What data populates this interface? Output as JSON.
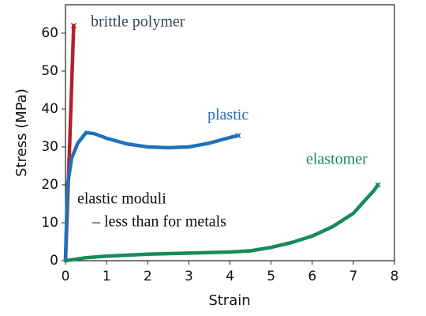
{
  "chart_data": {
    "type": "line",
    "x_label": "Strain",
    "y_label": "Stress (MPa)",
    "xlim": [
      0,
      8
    ],
    "ylim": [
      0,
      67.5
    ],
    "xticks": [
      0,
      1,
      2,
      3,
      4,
      5,
      6,
      7,
      8
    ],
    "yticks": [
      0,
      10,
      20,
      30,
      40,
      50,
      60
    ],
    "series": [
      {
        "name": "brittle polymer",
        "color": "#b3212e",
        "x": [
          0,
          0.05,
          0.1,
          0.15,
          0.2
        ],
        "values": [
          0,
          15,
          30,
          46,
          62
        ]
      },
      {
        "name": "plastic",
        "color": "#2271b8",
        "x": [
          0,
          0.05,
          0.15,
          0.3,
          0.5,
          0.7,
          1,
          1.5,
          2,
          2.5,
          3,
          3.5,
          4,
          4.2
        ],
        "values": [
          0,
          20,
          27,
          31,
          33.8,
          33.5,
          32.3,
          30.8,
          30,
          29.8,
          30,
          31,
          32.5,
          33
        ]
      },
      {
        "name": "elastomer",
        "color": "#178a5c",
        "x": [
          0,
          0.5,
          1,
          2,
          3,
          4,
          4.5,
          5,
          5.5,
          6,
          6.5,
          7,
          7.5,
          7.6
        ],
        "values": [
          0,
          0.8,
          1.2,
          1.7,
          2,
          2.3,
          2.6,
          3.5,
          4.8,
          6.5,
          9,
          12.5,
          18.5,
          20
        ]
      }
    ],
    "annotations": [
      "elastic moduli",
      "–  less than for metals"
    ]
  }
}
